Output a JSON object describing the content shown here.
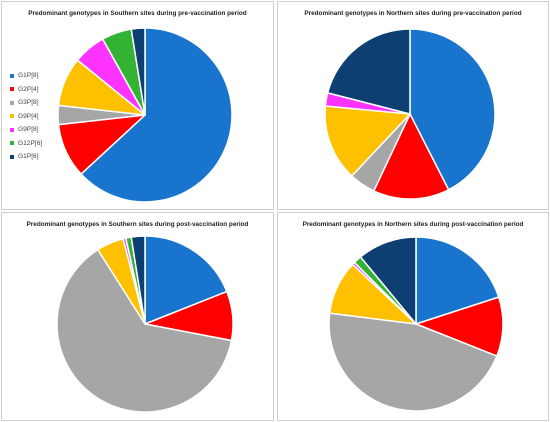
{
  "legend": {
    "items": [
      {
        "label": "G1P[8]",
        "color": "#1874CD"
      },
      {
        "label": "G2P[4]",
        "color": "#FF0000"
      },
      {
        "label": "G3P[8]",
        "color": "#A6A6A6"
      },
      {
        "label": "G9P[4]",
        "color": "#FFC000"
      },
      {
        "label": "G9P[8]",
        "color": "#FF33FF"
      },
      {
        "label": "G12P[6]",
        "color": "#33B233"
      },
      {
        "label": "G1P[6]",
        "color": "#0D3F73"
      }
    ]
  },
  "chart_data": [
    {
      "type": "pie",
      "title": "Predominant genotypes in Southern sites during pre-vaccination period",
      "labels": [
        "G1P[8]",
        "G2P[4]",
        "G3P[8]",
        "G9P[4]",
        "G9P[8]",
        "G12P[6]",
        "G1P[6]"
      ],
      "values": [
        62.5,
        10,
        3.5,
        9,
        6,
        5.5,
        2.5
      ],
      "colors": [
        "#1874CD",
        "#FF0000",
        "#A6A6A6",
        "#FFC000",
        "#FF33FF",
        "#33B233",
        "#0D3F73"
      ]
    },
    {
      "type": "pie",
      "title": "Predominant genotypes in Northern sites during pre-vaccination period",
      "labels": [
        "G1P[8]",
        "G2P[4]",
        "G3P[8]",
        "G9P[4]",
        "G9P[8]",
        "G12P[6]",
        "G1P[6]"
      ],
      "values": [
        42.5,
        14.5,
        5,
        14.5,
        2.5,
        0,
        21
      ],
      "colors": [
        "#1874CD",
        "#FF0000",
        "#A6A6A6",
        "#FFC000",
        "#FF33FF",
        "#33B233",
        "#0D3F73"
      ]
    },
    {
      "type": "pie",
      "title": "Predominant genotypes in Southern sites during post-vaccination period",
      "labels": [
        "G1P[8]",
        "G2P[4]",
        "G3P[8]",
        "G9P[4]",
        "G9P[8]",
        "G12P[6]",
        "G1P[6]"
      ],
      "values": [
        19,
        9,
        63,
        5,
        0.5,
        1,
        2.5
      ],
      "colors": [
        "#1874CD",
        "#FF0000",
        "#A6A6A6",
        "#FFC000",
        "#FF33FF",
        "#33B233",
        "#0D3F73"
      ]
    },
    {
      "type": "pie",
      "title": "Predominant genotypes in Northern sites during post-vaccination period",
      "labels": [
        "G1P[8]",
        "G2P[4]",
        "G3P[8]",
        "G9P[4]",
        "G9P[8]",
        "G12P[6]",
        "G1P[6]"
      ],
      "values": [
        20,
        11,
        46,
        10,
        0.5,
        1.5,
        11
      ],
      "colors": [
        "#1874CD",
        "#FF0000",
        "#A6A6A6",
        "#FFC000",
        "#FF33FF",
        "#33B233",
        "#0D3F73"
      ]
    }
  ]
}
